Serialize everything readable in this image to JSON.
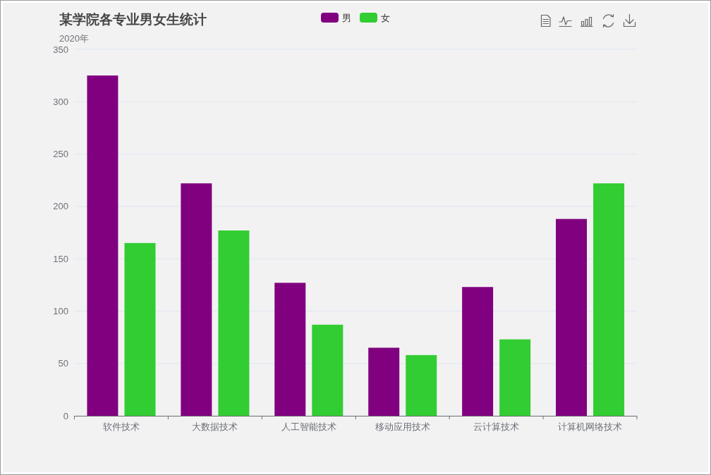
{
  "chart_data": {
    "type": "bar",
    "title": "某学院各专业男女生统计",
    "subtitle": "2020年",
    "categories": [
      "软件技术",
      "大数据技术",
      "人工智能技术",
      "移动应用技术",
      "云计算技术",
      "计算机网络技术"
    ],
    "series": [
      {
        "name": "男",
        "color": "#800080",
        "values": [
          325,
          222,
          127,
          65,
          123,
          188
        ]
      },
      {
        "name": "女",
        "color": "#32cd32",
        "values": [
          165,
          177,
          87,
          58,
          73,
          222
        ]
      }
    ],
    "ylim": [
      0,
      350
    ],
    "yticks": [
      0,
      50,
      100,
      150,
      200,
      250,
      300,
      350
    ],
    "grid": "y",
    "legend": "top"
  }
}
